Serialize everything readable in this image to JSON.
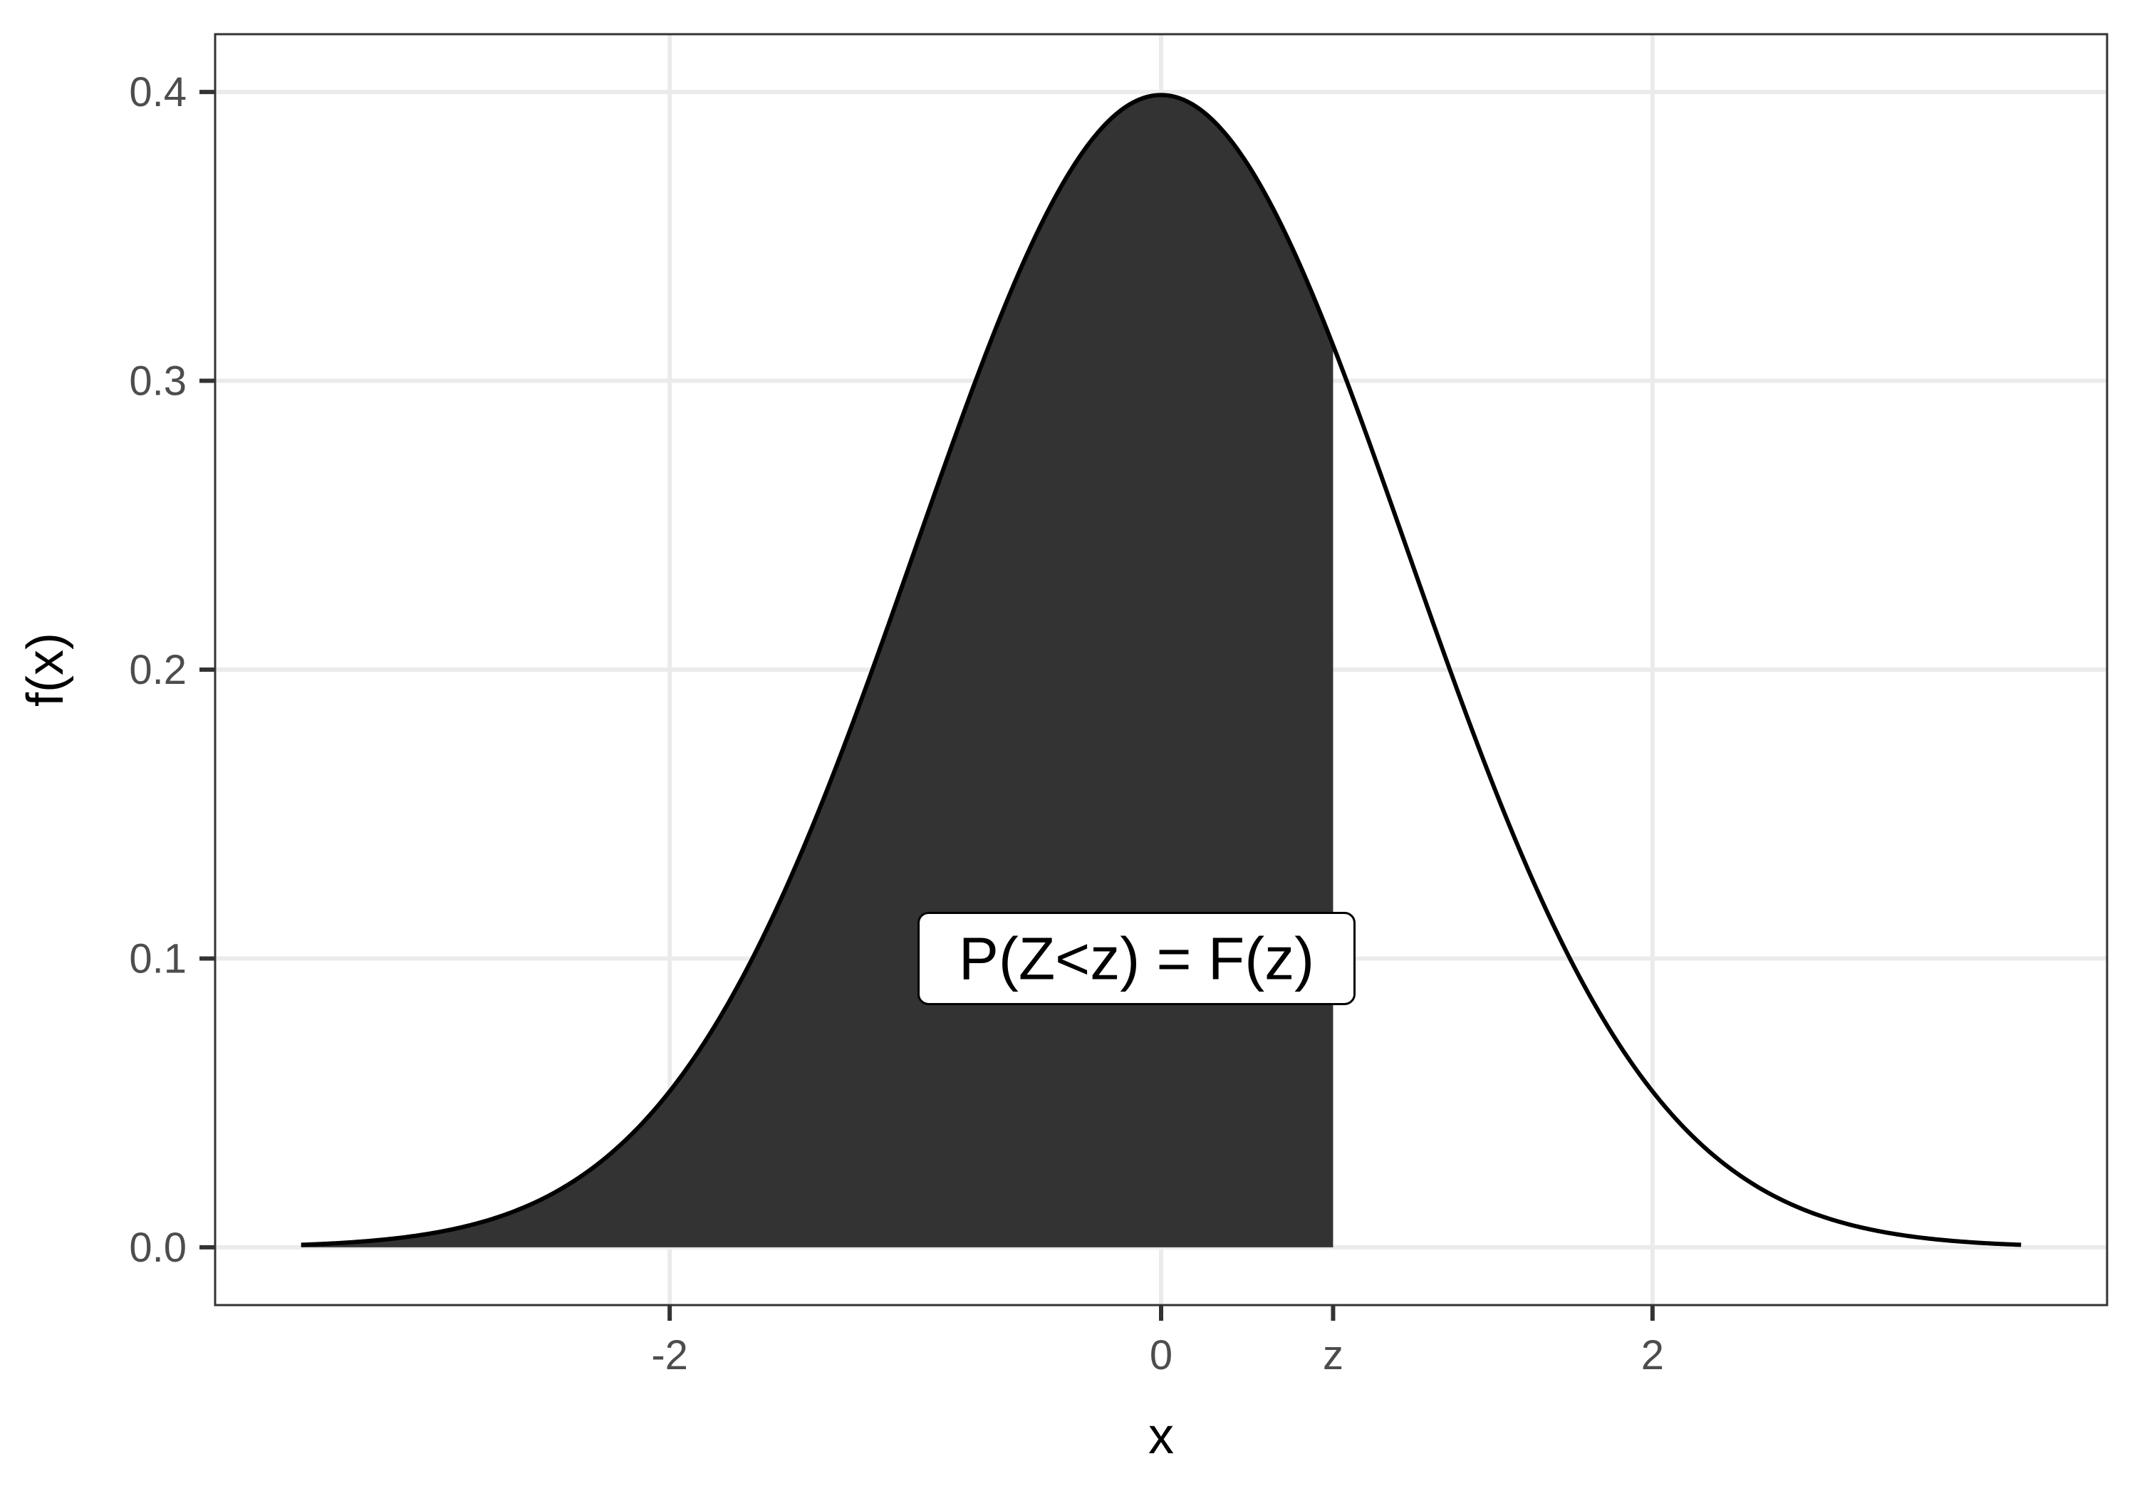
{
  "chart_data": {
    "type": "area",
    "distribution": "standard normal density",
    "xlabel": "x",
    "ylabel": "f(x)",
    "xlim": [
      -3.5,
      3.5
    ],
    "ylim": [
      0,
      0.4
    ],
    "x_ticks": [
      {
        "value": -2,
        "label": "-2"
      },
      {
        "value": 0,
        "label": "0"
      },
      {
        "value": 0.7,
        "label": "z"
      },
      {
        "value": 2,
        "label": "2"
      }
    ],
    "y_ticks": [
      {
        "value": 0.0,
        "label": "0.0"
      },
      {
        "value": 0.1,
        "label": "0.1"
      },
      {
        "value": 0.2,
        "label": "0.2"
      },
      {
        "value": 0.3,
        "label": "0.3"
      },
      {
        "value": 0.4,
        "label": "0.4"
      }
    ],
    "shaded_region": {
      "from": -3.5,
      "to": 0.7
    },
    "annotation": {
      "text": "P(Z<z) = F(z)",
      "x": -0.1,
      "y": 0.1
    },
    "grid": true,
    "legend": "none",
    "colors": {
      "fill": "#333333",
      "line": "#000000",
      "grid": "#ebebeb",
      "panel_border": "#333333"
    }
  }
}
